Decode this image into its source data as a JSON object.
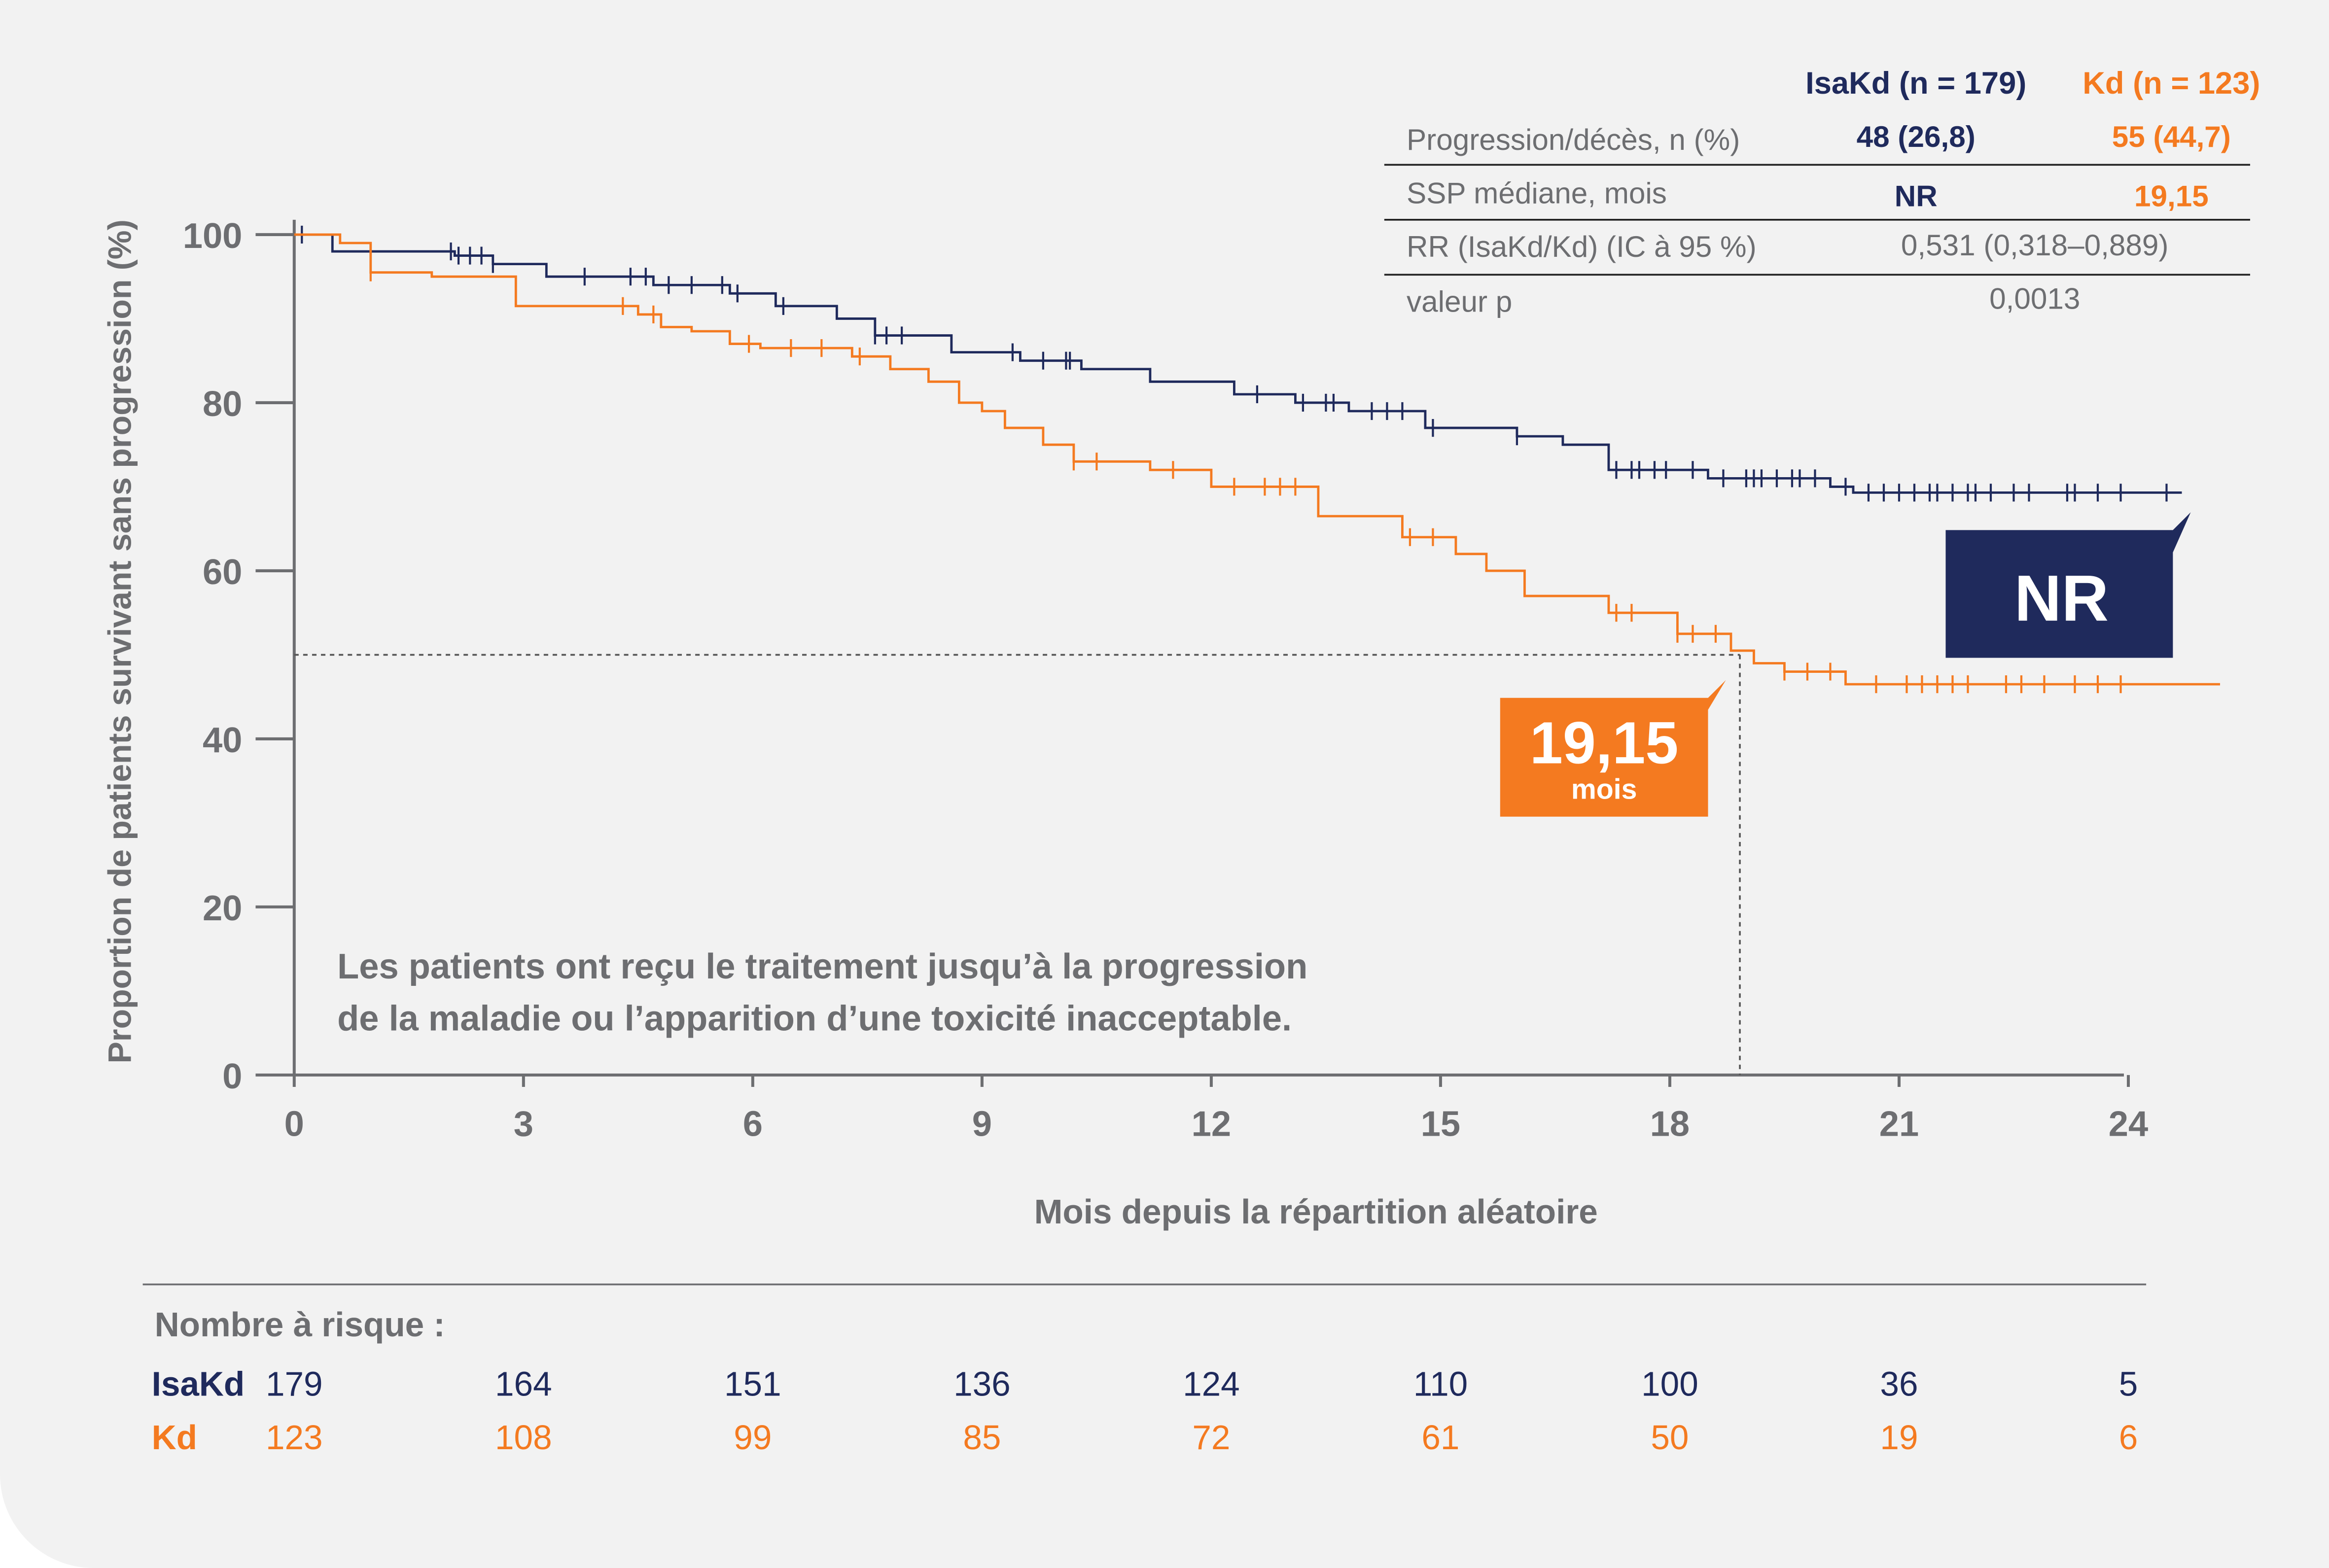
{
  "colors": {
    "isakd": "#1f2a5c",
    "kd": "#f47a20",
    "axis": "#6d6e71",
    "text": "#6d6e71",
    "background": "#f2f2f2"
  },
  "summary_table": {
    "headers": [
      "IsaKd (n = 179)",
      "Kd (n = 123)"
    ],
    "rows": [
      {
        "label": "Progression/décès, n (%)",
        "isakd": "48 (26,8)",
        "kd": "55 (44,7)"
      },
      {
        "label": "SSP médiane, mois",
        "isakd": "NR",
        "kd": "19,15"
      },
      {
        "label": "RR (IsaKd/Kd) (IC à 95 %)",
        "combined": "0,531 (0,318–0,889)"
      },
      {
        "label": "valeur p",
        "combined": "0,0013"
      }
    ]
  },
  "annotations": {
    "nr_box": "NR",
    "kd_box_value": "19,15",
    "kd_box_unit": "mois",
    "note_line1": "Les patients ont reçu le traitement jusqu’à la progression",
    "note_line2": "de la maladie ou l’apparition d’une toxicité inacceptable."
  },
  "chart_data": {
    "type": "line",
    "subtype": "kaplan-meier step",
    "xlabel": "Mois depuis la répartition aléatoire",
    "ylabel": "Proportion de patients survivant sans progression (%)",
    "xlim": [
      0,
      24
    ],
    "ylim": [
      0,
      100
    ],
    "x_ticks": [
      "0",
      "3",
      "6",
      "9",
      "12",
      "15",
      "18",
      "21",
      "24"
    ],
    "y_ticks": [
      "0",
      "20",
      "40",
      "60",
      "80",
      "100"
    ],
    "grid": false,
    "median_line": {
      "y": 50,
      "x": 19.15
    },
    "series": [
      {
        "name": "IsaKd",
        "color": "#1f2a5c",
        "steps": [
          [
            0,
            100
          ],
          [
            0.5,
            98
          ],
          [
            2.1,
            97.5
          ],
          [
            2.6,
            96.5
          ],
          [
            3.3,
            95
          ],
          [
            4.7,
            94
          ],
          [
            5.7,
            93
          ],
          [
            6.3,
            91.5
          ],
          [
            7.1,
            90
          ],
          [
            7.6,
            88
          ],
          [
            8.6,
            86
          ],
          [
            9.5,
            85
          ],
          [
            10.3,
            84
          ],
          [
            11.2,
            82.5
          ],
          [
            12.3,
            81
          ],
          [
            13.1,
            80
          ],
          [
            13.8,
            79
          ],
          [
            14.8,
            77
          ],
          [
            16.0,
            76
          ],
          [
            16.6,
            75
          ],
          [
            17.2,
            72
          ],
          [
            18.5,
            71
          ],
          [
            20.1,
            70
          ],
          [
            20.4,
            69.3
          ],
          [
            24.7,
            69.3
          ]
        ],
        "censored": [
          0.1,
          2.05,
          2.15,
          2.3,
          2.45,
          2.6,
          3.8,
          4.4,
          4.6,
          4.9,
          5.2,
          5.6,
          5.8,
          6.4,
          7.6,
          7.75,
          7.95,
          9.4,
          9.8,
          10.1,
          10.15,
          12.6,
          13.2,
          13.5,
          13.6,
          14.1,
          14.3,
          14.5,
          14.9,
          16.0,
          17.3,
          17.5,
          17.6,
          17.8,
          17.95,
          18.3,
          18.7,
          19.0,
          19.1,
          19.2,
          19.4,
          19.6,
          19.7,
          19.9,
          20.3,
          20.6,
          20.8,
          21.0,
          21.2,
          21.4,
          21.5,
          21.7,
          21.9,
          22.0,
          22.2,
          22.5,
          22.7,
          23.2,
          23.3,
          23.6,
          23.9,
          24.5
        ]
      },
      {
        "name": "Kd",
        "color": "#f47a20",
        "steps": [
          [
            0,
            100
          ],
          [
            0.6,
            99
          ],
          [
            1.0,
            95.5
          ],
          [
            1.8,
            95
          ],
          [
            2.9,
            91.5
          ],
          [
            4.5,
            90.5
          ],
          [
            4.8,
            89
          ],
          [
            5.2,
            88.5
          ],
          [
            5.7,
            87
          ],
          [
            6.1,
            86.5
          ],
          [
            7.3,
            85.5
          ],
          [
            7.8,
            84
          ],
          [
            8.3,
            82.5
          ],
          [
            8.7,
            80
          ],
          [
            9.0,
            79
          ],
          [
            9.3,
            77
          ],
          [
            9.8,
            75
          ],
          [
            10.2,
            73
          ],
          [
            11.2,
            72
          ],
          [
            12.0,
            70
          ],
          [
            13.4,
            66.5
          ],
          [
            14.5,
            64
          ],
          [
            15.2,
            62
          ],
          [
            15.6,
            60
          ],
          [
            16.1,
            57
          ],
          [
            17.2,
            55
          ],
          [
            18.1,
            52.5
          ],
          [
            18.8,
            50.5
          ],
          [
            19.1,
            49
          ],
          [
            19.5,
            48
          ],
          [
            20.3,
            46.5
          ],
          [
            25.2,
            46.5
          ]
        ],
        "censored": [
          1.0,
          4.3,
          4.7,
          5.95,
          6.5,
          6.9,
          7.4,
          10.2,
          10.5,
          11.5,
          12.3,
          12.7,
          12.9,
          13.1,
          14.6,
          14.9,
          17.3,
          17.5,
          18.1,
          18.3,
          18.6,
          19.5,
          19.8,
          20.1,
          20.7,
          21.1,
          21.3,
          21.5,
          21.7,
          21.9,
          22.4,
          22.6,
          22.9,
          23.3,
          23.6,
          23.9
        ]
      }
    ]
  },
  "risk_table": {
    "title": "Nombre à risque :",
    "rows": [
      {
        "label": "IsaKd",
        "values": [
          "179",
          "164",
          "151",
          "136",
          "124",
          "110",
          "100",
          "36",
          "5"
        ]
      },
      {
        "label": "Kd",
        "values": [
          "123",
          "108",
          "99",
          "85",
          "72",
          "61",
          "50",
          "19",
          "6"
        ]
      }
    ]
  }
}
